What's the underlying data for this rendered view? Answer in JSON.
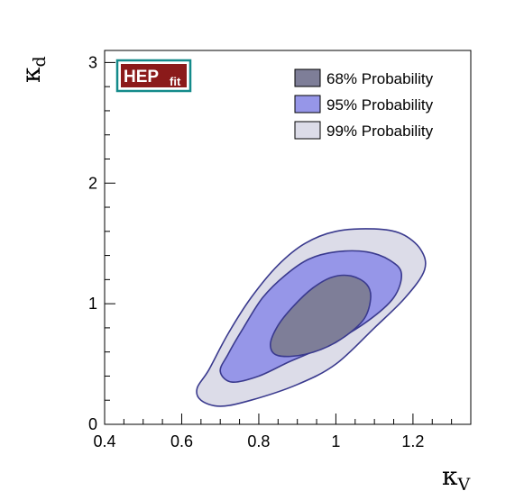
{
  "logo": {
    "main": "HEP",
    "sub": "fit"
  },
  "chart_data": {
    "type": "contour",
    "title": "",
    "xlabel": {
      "symbol": "κ",
      "subscript": "V"
    },
    "ylabel": {
      "symbol": "κ",
      "subscript": "d"
    },
    "xlim": [
      0.4,
      1.35
    ],
    "ylim": [
      0,
      3.1
    ],
    "xticks": [
      {
        "value": 0.4,
        "label": "0.4"
      },
      {
        "value": 0.6,
        "label": "0.6"
      },
      {
        "value": 0.8,
        "label": "0.8"
      },
      {
        "value": 1.0,
        "label": "1"
      },
      {
        "value": 1.2,
        "label": "1.2"
      }
    ],
    "yticks": [
      {
        "value": 0,
        "label": "0"
      },
      {
        "value": 1,
        "label": "1"
      },
      {
        "value": 2,
        "label": "2"
      },
      {
        "value": 3,
        "label": "3"
      }
    ],
    "legend_position": "top-right",
    "series": [
      {
        "name": "99% Probability",
        "fill": "#dcdce8",
        "stroke": "#3a3a8e",
        "contour": [
          [
            0.7,
            0.15
          ],
          [
            0.78,
            0.2
          ],
          [
            0.9,
            0.33
          ],
          [
            1.0,
            0.5
          ],
          [
            1.1,
            0.8
          ],
          [
            1.18,
            1.05
          ],
          [
            1.23,
            1.28
          ],
          [
            1.22,
            1.45
          ],
          [
            1.17,
            1.58
          ],
          [
            1.1,
            1.62
          ],
          [
            1.0,
            1.6
          ],
          [
            0.92,
            1.5
          ],
          [
            0.85,
            1.32
          ],
          [
            0.78,
            1.05
          ],
          [
            0.72,
            0.75
          ],
          [
            0.67,
            0.45
          ],
          [
            0.64,
            0.3
          ],
          [
            0.65,
            0.2
          ]
        ]
      },
      {
        "name": "95% Probability",
        "fill": "#9696e8",
        "stroke": "#3a3a8e",
        "contour": [
          [
            0.73,
            0.35
          ],
          [
            0.8,
            0.4
          ],
          [
            0.88,
            0.52
          ],
          [
            0.98,
            0.66
          ],
          [
            1.08,
            0.85
          ],
          [
            1.15,
            1.05
          ],
          [
            1.17,
            1.25
          ],
          [
            1.14,
            1.36
          ],
          [
            1.08,
            1.43
          ],
          [
            1.0,
            1.43
          ],
          [
            0.93,
            1.37
          ],
          [
            0.87,
            1.24
          ],
          [
            0.81,
            1.05
          ],
          [
            0.76,
            0.8
          ],
          [
            0.72,
            0.58
          ],
          [
            0.7,
            0.44
          ]
        ]
      },
      {
        "name": "68% Probability",
        "fill": "#7e7e98",
        "stroke": "#3a3a8e",
        "contour": [
          [
            0.85,
            0.57
          ],
          [
            0.92,
            0.58
          ],
          [
            1.0,
            0.68
          ],
          [
            1.07,
            0.86
          ],
          [
            1.09,
            1.04
          ],
          [
            1.08,
            1.16
          ],
          [
            1.04,
            1.23
          ],
          [
            0.99,
            1.22
          ],
          [
            0.94,
            1.13
          ],
          [
            0.89,
            0.98
          ],
          [
            0.85,
            0.82
          ],
          [
            0.83,
            0.66
          ]
        ]
      }
    ],
    "legend": [
      {
        "label": "68% Probability",
        "fill": "#7e7e98"
      },
      {
        "label": "95% Probability",
        "fill": "#9696e8"
      },
      {
        "label": "99% Probability",
        "fill": "#dcdce8"
      }
    ]
  }
}
